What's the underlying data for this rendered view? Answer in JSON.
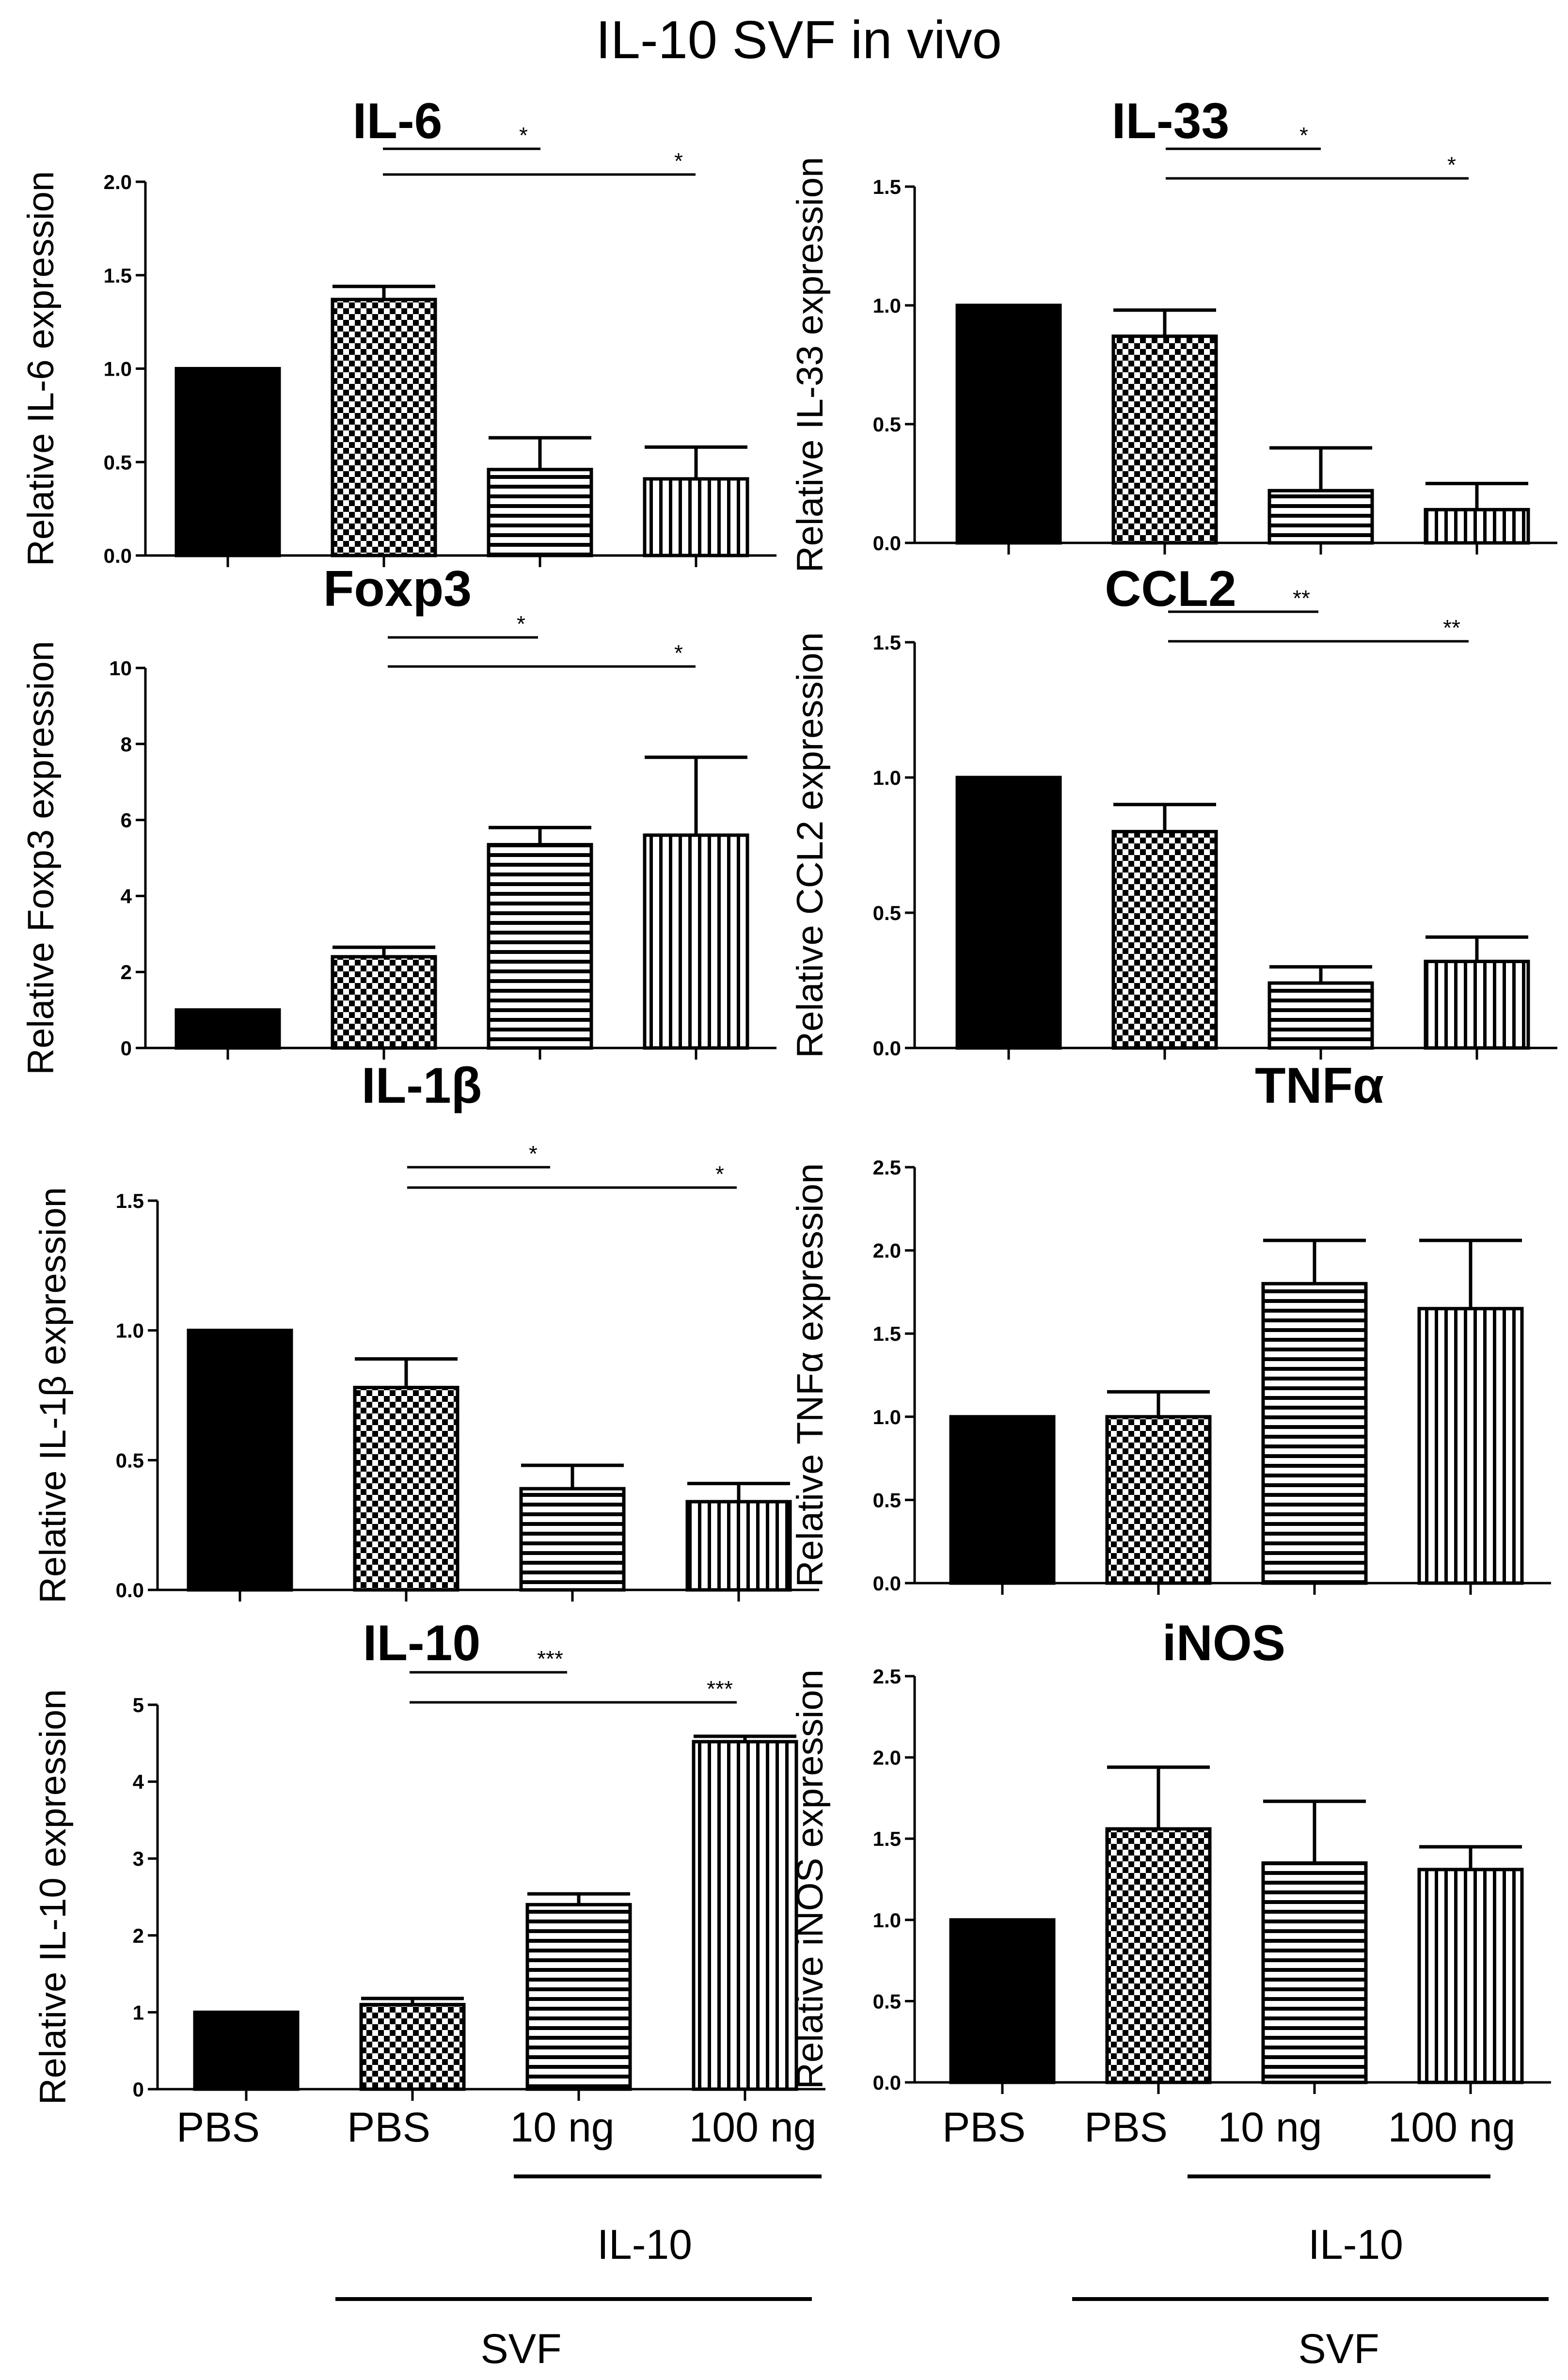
{
  "figure_title": "IL-10 SVF in vivo",
  "conditions": [
    "PBS",
    "PBS",
    "10 ng",
    "100 ng"
  ],
  "bottom_labels": {
    "left": {
      "x_categories": [
        "PBS",
        "PBS",
        "10 ng",
        "100 ng"
      ],
      "treatment": "IL-10",
      "cell": "SVF"
    },
    "right": {
      "x_categories": [
        "PBS",
        "PBS",
        "10 ng",
        "100 ng"
      ],
      "treatment": "IL-10",
      "cell": "SVF"
    }
  },
  "colors": {
    "bar_fill": "#000000",
    "bar_edge": "#000000",
    "background": "#ffffff"
  },
  "chart_data": [
    {
      "type": "bar",
      "title": "IL-6",
      "ylabel": "Relative IL-6 expression",
      "categories": [
        "PBS",
        "PBS",
        "10 ng",
        "100 ng"
      ],
      "values": [
        1.0,
        1.37,
        0.46,
        0.41
      ],
      "errors": [
        0,
        0.07,
        0.17,
        0.17
      ],
      "ylim": [
        0,
        2.0
      ],
      "yticks": [
        "0.0",
        "0.5",
        "1.0",
        "1.5",
        "2.0"
      ],
      "significance": [
        {
          "from": 1,
          "to": 2,
          "label": "*"
        },
        {
          "from": 1,
          "to": 3,
          "label": "*"
        }
      ]
    },
    {
      "type": "bar",
      "title": "IL-33",
      "ylabel": "Relative IL-33 expression",
      "categories": [
        "PBS",
        "PBS",
        "10 ng",
        "100 ng"
      ],
      "values": [
        1.0,
        0.87,
        0.22,
        0.14
      ],
      "errors": [
        0,
        0.11,
        0.18,
        0.11
      ],
      "ylim": [
        0,
        1.5
      ],
      "yticks": [
        "0.0",
        "0.5",
        "1.0",
        "1.5"
      ],
      "significance": [
        {
          "from": 1,
          "to": 2,
          "label": "*"
        },
        {
          "from": 1,
          "to": 3,
          "label": "*"
        }
      ]
    },
    {
      "type": "bar",
      "title": "Foxp3",
      "ylabel": "Relative Foxp3 expression",
      "categories": [
        "PBS",
        "PBS",
        "10 ng",
        "100 ng"
      ],
      "values": [
        1.0,
        2.4,
        5.35,
        5.6
      ],
      "errors": [
        0,
        0.25,
        0.45,
        2.05
      ],
      "ylim": [
        0,
        10
      ],
      "yticks": [
        "0",
        "2",
        "4",
        "6",
        "8",
        "10"
      ],
      "significance": [
        {
          "from": 1,
          "to": 2,
          "label": "*"
        },
        {
          "from": 1,
          "to": 3,
          "label": "*"
        }
      ]
    },
    {
      "type": "bar",
      "title": "CCL2",
      "ylabel": "Relative CCL2 expression",
      "categories": [
        "PBS",
        "PBS",
        "10 ng",
        "100 ng"
      ],
      "values": [
        1.0,
        0.8,
        0.24,
        0.32
      ],
      "errors": [
        0,
        0.1,
        0.06,
        0.09
      ],
      "ylim": [
        0,
        1.5
      ],
      "yticks": [
        "0.0",
        "0.5",
        "1.0",
        "1.5"
      ],
      "significance": [
        {
          "from": 1,
          "to": 2,
          "label": "**"
        },
        {
          "from": 1,
          "to": 3,
          "label": "**"
        }
      ]
    },
    {
      "type": "bar",
      "title": "IL-1β",
      "ylabel": "Relative IL-1β expression",
      "categories": [
        "PBS",
        "PBS",
        "10 ng",
        "100 ng"
      ],
      "values": [
        1.0,
        0.78,
        0.39,
        0.34
      ],
      "errors": [
        0,
        0.11,
        0.09,
        0.07
      ],
      "ylim": [
        0,
        1.5
      ],
      "yticks": [
        "0.0",
        "0.5",
        "1.0",
        "1.5"
      ],
      "significance": [
        {
          "from": 1,
          "to": 2,
          "label": "*"
        },
        {
          "from": 1,
          "to": 3,
          "label": "*"
        }
      ]
    },
    {
      "type": "bar",
      "title": "TNFα",
      "ylabel": "Relative TNFα expression",
      "categories": [
        "PBS",
        "PBS",
        "10 ng",
        "100 ng"
      ],
      "values": [
        1.0,
        1.0,
        1.8,
        1.65
      ],
      "errors": [
        0,
        0.15,
        0.26,
        0.41
      ],
      "ylim": [
        0,
        2.5
      ],
      "yticks": [
        "0.0",
        "0.5",
        "1.0",
        "1.5",
        "2.0",
        "2.5"
      ],
      "significance": []
    },
    {
      "type": "bar",
      "title": "IL-10",
      "ylabel": "Relative IL-10 expression",
      "categories": [
        "PBS",
        "PBS",
        "10 ng",
        "100 ng"
      ],
      "values": [
        1.0,
        1.1,
        2.4,
        4.52
      ],
      "errors": [
        0,
        0.08,
        0.14,
        0.07
      ],
      "ylim": [
        0,
        5
      ],
      "yticks": [
        "0",
        "1",
        "2",
        "3",
        "4",
        "5"
      ],
      "significance": [
        {
          "from": 1,
          "to": 2,
          "label": "***"
        },
        {
          "from": 1,
          "to": 3,
          "label": "***"
        }
      ]
    },
    {
      "type": "bar",
      "title": "iNOS",
      "ylabel": "Relative iNOS expression",
      "categories": [
        "PBS",
        "PBS",
        "10 ng",
        "100 ng"
      ],
      "values": [
        1.0,
        1.56,
        1.35,
        1.31
      ],
      "errors": [
        0,
        0.38,
        0.38,
        0.14
      ],
      "ylim": [
        0,
        2.5
      ],
      "yticks": [
        "0.0",
        "0.5",
        "1.0",
        "1.5",
        "2.0",
        "2.5"
      ],
      "significance": []
    }
  ]
}
